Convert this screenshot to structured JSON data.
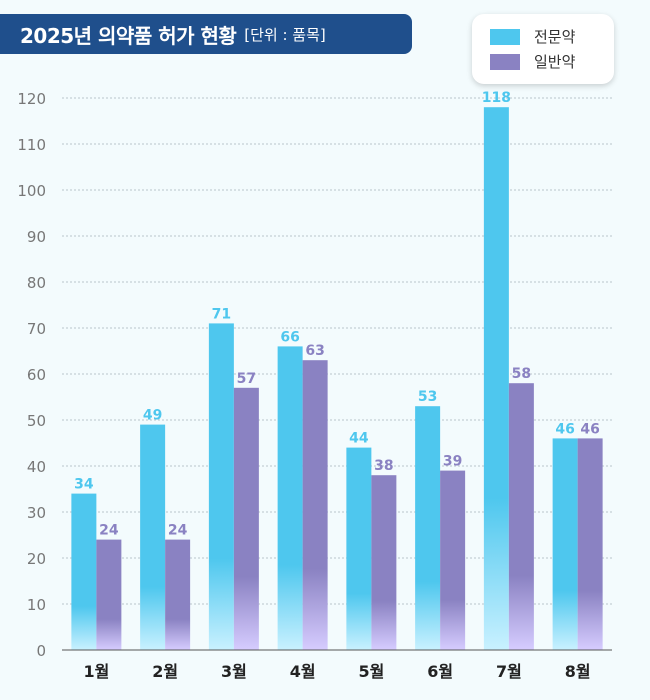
{
  "title": {
    "main": "2025년 의약품 허가 현황",
    "unit": "[단위 : 품목]"
  },
  "colors": {
    "prescription": "#4ec7ee",
    "otc": "#8a82c2",
    "grid": "#b9c4cc",
    "axis_text": "#777777",
    "category_text": "#222222"
  },
  "chart_data": {
    "type": "bar",
    "title": "2025년 의약품 허가 현황",
    "subtitle": "[단위 : 품목]",
    "categories": [
      "1월",
      "2월",
      "3월",
      "4월",
      "5월",
      "6월",
      "7월",
      "8월"
    ],
    "series": [
      {
        "name": "전문약",
        "values": [
          34,
          49,
          71,
          66,
          44,
          53,
          118,
          46
        ]
      },
      {
        "name": "일반약",
        "values": [
          24,
          24,
          57,
          63,
          38,
          39,
          58,
          46
        ]
      }
    ],
    "ylim": [
      0,
      120
    ],
    "yticks": [
      0,
      10,
      20,
      30,
      40,
      50,
      60,
      70,
      80,
      90,
      100,
      110,
      120
    ],
    "grid": true,
    "legend_position": "top-right"
  }
}
